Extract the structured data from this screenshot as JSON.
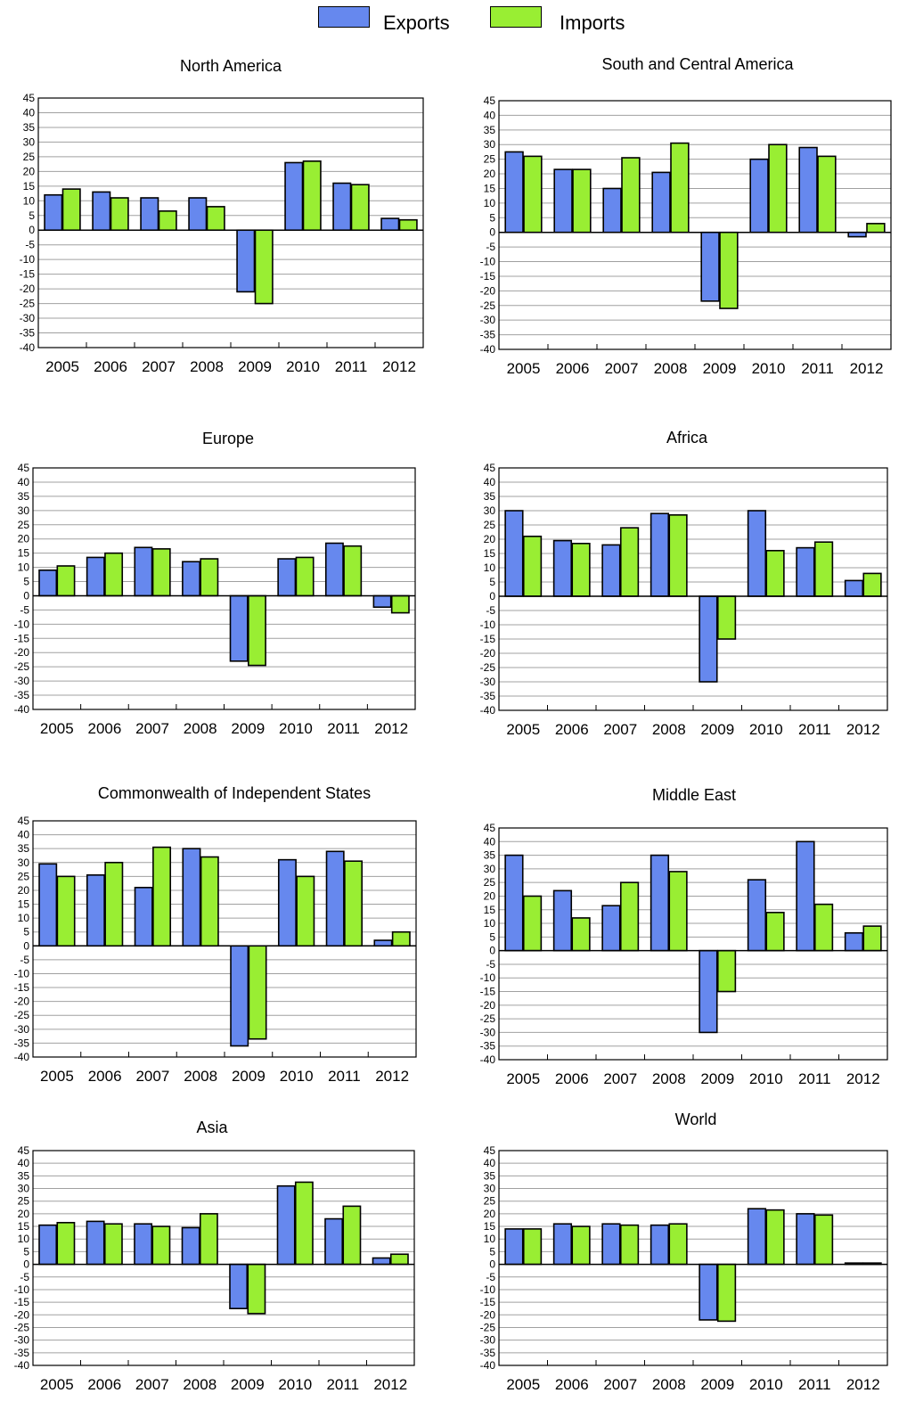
{
  "legend": {
    "exports_label": "Exports",
    "imports_label": "Imports",
    "exports_color": "#6688ee",
    "imports_color": "#99ee33"
  },
  "chart_data": [
    {
      "type": "bar",
      "title": "North America",
      "categories": [
        "2005",
        "2006",
        "2007",
        "2008",
        "2009",
        "2010",
        "2011",
        "2012"
      ],
      "ylim": [
        -40,
        45
      ],
      "yticks": [
        45,
        40,
        35,
        30,
        25,
        20,
        15,
        10,
        5,
        0,
        -5,
        -10,
        -15,
        -20,
        -25,
        -30,
        -35,
        -40
      ],
      "grid": true,
      "series": [
        {
          "name": "Exports",
          "values": [
            12,
            13,
            11,
            11,
            -21,
            23,
            16,
            4
          ]
        },
        {
          "name": "Imports",
          "values": [
            14,
            11,
            6.5,
            8,
            -25,
            23.5,
            15.5,
            3.5
          ]
        }
      ]
    },
    {
      "type": "bar",
      "title": "South and Central America",
      "categories": [
        "2005",
        "2006",
        "2007",
        "2008",
        "2009",
        "2010",
        "2011",
        "2012"
      ],
      "ylim": [
        -40,
        45
      ],
      "yticks": [
        45,
        40,
        35,
        30,
        25,
        20,
        15,
        10,
        5,
        0,
        -5,
        -10,
        -15,
        -20,
        -25,
        -30,
        -35,
        -40
      ],
      "grid": true,
      "series": [
        {
          "name": "Exports",
          "values": [
            27.5,
            21.5,
            15,
            20.5,
            -23.5,
            25,
            29,
            -1.5
          ]
        },
        {
          "name": "Imports",
          "values": [
            26,
            21.5,
            25.5,
            30.5,
            -26,
            30,
            26,
            3
          ]
        }
      ]
    },
    {
      "type": "bar",
      "title": "Europe",
      "categories": [
        "2005",
        "2006",
        "2007",
        "2008",
        "2009",
        "2010",
        "2011",
        "2012"
      ],
      "ylim": [
        -40,
        45
      ],
      "yticks": [
        45,
        40,
        35,
        30,
        25,
        20,
        15,
        10,
        5,
        0,
        -5,
        -10,
        -15,
        -20,
        -25,
        -30,
        -35,
        -40
      ],
      "grid": true,
      "series": [
        {
          "name": "Exports",
          "values": [
            9,
            13.5,
            17,
            12,
            -23,
            13,
            18.5,
            -4
          ]
        },
        {
          "name": "Imports",
          "values": [
            10.5,
            15,
            16.5,
            13,
            -24.5,
            13.5,
            17.5,
            -6
          ]
        }
      ]
    },
    {
      "type": "bar",
      "title": "Africa",
      "categories": [
        "2005",
        "2006",
        "2007",
        "2008",
        "2009",
        "2010",
        "2011",
        "2012"
      ],
      "ylim": [
        -40,
        45
      ],
      "yticks": [
        45,
        40,
        35,
        30,
        25,
        20,
        15,
        10,
        5,
        0,
        -5,
        -10,
        -15,
        -20,
        -25,
        -30,
        -35,
        -40
      ],
      "grid": true,
      "series": [
        {
          "name": "Exports",
          "values": [
            30,
            19.5,
            18,
            29,
            -30,
            30,
            17,
            5.5
          ]
        },
        {
          "name": "Imports",
          "values": [
            21,
            18.5,
            24,
            28.5,
            -15,
            16,
            19,
            8
          ]
        }
      ]
    },
    {
      "type": "bar",
      "title": "Commonwealth of Independent States",
      "categories": [
        "2005",
        "2006",
        "2007",
        "2008",
        "2009",
        "2010",
        "2011",
        "2012"
      ],
      "ylim": [
        -40,
        45
      ],
      "yticks": [
        45,
        40,
        35,
        30,
        25,
        20,
        15,
        10,
        5,
        0,
        -5,
        -10,
        -15,
        -20,
        -25,
        -30,
        -35,
        -40
      ],
      "grid": true,
      "series": [
        {
          "name": "Exports",
          "values": [
            29.5,
            25.5,
            21,
            35,
            -36,
            31,
            34,
            2
          ]
        },
        {
          "name": "Imports",
          "values": [
            25,
            30,
            35.5,
            32,
            -33.5,
            25,
            30.5,
            5
          ]
        }
      ]
    },
    {
      "type": "bar",
      "title": "Middle East",
      "categories": [
        "2005",
        "2006",
        "2007",
        "2008",
        "2009",
        "2010",
        "2011",
        "2012"
      ],
      "ylim": [
        -40,
        45
      ],
      "yticks": [
        45,
        40,
        35,
        30,
        25,
        20,
        15,
        10,
        5,
        0,
        -5,
        -10,
        -15,
        -20,
        -25,
        -30,
        -35,
        -40
      ],
      "grid": true,
      "series": [
        {
          "name": "Exports",
          "values": [
            35,
            22,
            16.5,
            35,
            -30,
            26,
            40,
            6.5
          ]
        },
        {
          "name": "Imports",
          "values": [
            20,
            12,
            25,
            29,
            -15,
            14,
            17,
            9
          ]
        }
      ]
    },
    {
      "type": "bar",
      "title": "Asia",
      "categories": [
        "2005",
        "2006",
        "2007",
        "2008",
        "2009",
        "2010",
        "2011",
        "2012"
      ],
      "ylim": [
        -40,
        45
      ],
      "yticks": [
        45,
        40,
        35,
        30,
        25,
        20,
        15,
        10,
        5,
        0,
        -5,
        -10,
        -15,
        -20,
        -25,
        -30,
        -35,
        -40
      ],
      "grid": true,
      "series": [
        {
          "name": "Exports",
          "values": [
            15.5,
            17,
            16,
            14.5,
            -17.5,
            31,
            18,
            2.5
          ]
        },
        {
          "name": "Imports",
          "values": [
            16.5,
            16,
            15,
            20,
            -19.5,
            32.5,
            23,
            4
          ]
        }
      ]
    },
    {
      "type": "bar",
      "title": "World",
      "categories": [
        "2005",
        "2006",
        "2007",
        "2008",
        "2009",
        "2010",
        "2011",
        "2012"
      ],
      "ylim": [
        -40,
        45
      ],
      "yticks": [
        45,
        40,
        35,
        30,
        25,
        20,
        15,
        10,
        5,
        0,
        -5,
        -10,
        -15,
        -20,
        -25,
        -30,
        -35,
        -40
      ],
      "grid": true,
      "series": [
        {
          "name": "Exports",
          "values": [
            14,
            16,
            16,
            15.5,
            -22,
            22,
            20,
            0.5
          ]
        },
        {
          "name": "Imports",
          "values": [
            14,
            15,
            15.5,
            16,
            -22.5,
            21.5,
            19.5,
            0.5
          ]
        }
      ]
    }
  ]
}
